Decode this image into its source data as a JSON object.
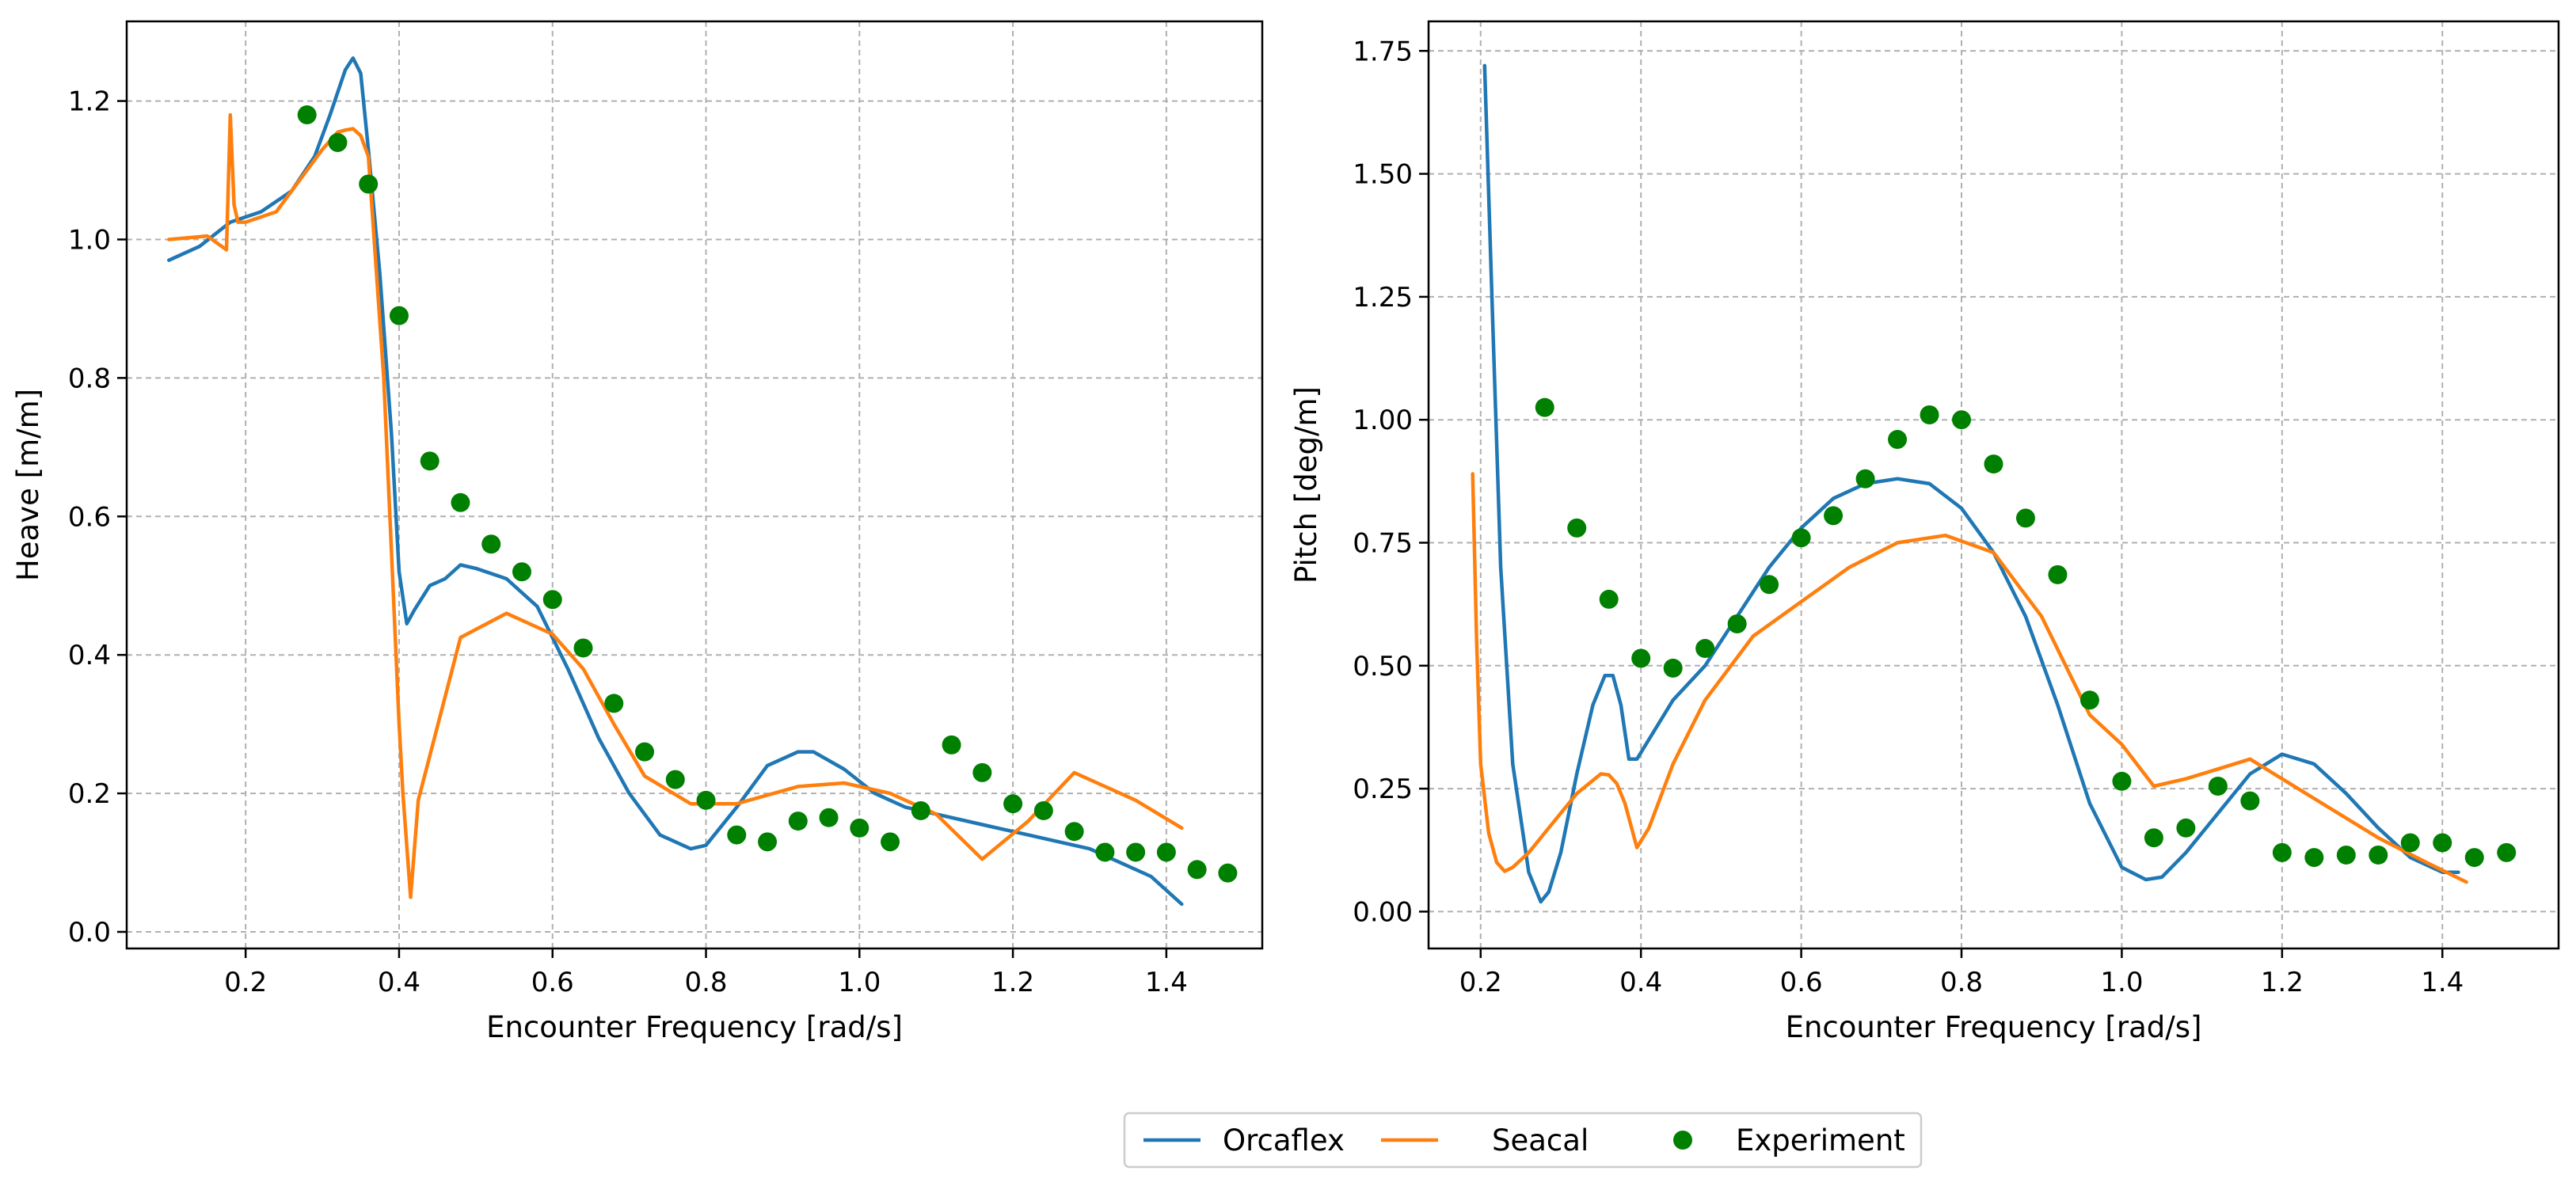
{
  "colors": {
    "orcaflex": "#1f77b4",
    "seacal": "#ff7f0e",
    "experiment": "#008000"
  },
  "legend": {
    "orcaflex_label": "Orcaflex",
    "seacal_label": "Seacal",
    "experiment_label": "Experiment",
    "placement": "bottom-center"
  },
  "chart_data": [
    {
      "type": "line",
      "id": "heave",
      "xlabel": "Encounter Frequency [rad/s]",
      "ylabel": "Heave [m/m]",
      "xlim": [
        0.045,
        1.525
      ],
      "ylim": [
        -0.024,
        1.315
      ],
      "xticks": [
        0.2,
        0.4,
        0.6,
        0.8,
        1.0,
        1.2,
        1.4
      ],
      "xtick_labels": [
        "0.2",
        "0.4",
        "0.6",
        "0.8",
        "1.0",
        "1.2",
        "1.4"
      ],
      "yticks": [
        0.0,
        0.2,
        0.4,
        0.6,
        0.8,
        1.0,
        1.2
      ],
      "ytick_labels": [
        "0.0",
        "0.2",
        "0.4",
        "0.6",
        "0.8",
        "1.0",
        "1.2"
      ],
      "grid": true,
      "series": [
        {
          "name": "Orcaflex",
          "x": [
            0.1,
            0.14,
            0.18,
            0.22,
            0.26,
            0.29,
            0.31,
            0.33,
            0.34,
            0.35,
            0.36,
            0.375,
            0.39,
            0.4,
            0.41,
            0.42,
            0.44,
            0.46,
            0.48,
            0.5,
            0.54,
            0.58,
            0.62,
            0.66,
            0.7,
            0.74,
            0.78,
            0.8,
            0.84,
            0.88,
            0.92,
            0.94,
            0.98,
            1.02,
            1.06,
            1.1,
            1.16,
            1.2,
            1.26,
            1.3,
            1.34,
            1.38,
            1.42
          ],
          "y": [
            0.97,
            0.99,
            1.025,
            1.04,
            1.07,
            1.12,
            1.18,
            1.245,
            1.262,
            1.24,
            1.13,
            0.95,
            0.72,
            0.52,
            0.445,
            0.465,
            0.5,
            0.51,
            0.53,
            0.525,
            0.51,
            0.47,
            0.38,
            0.28,
            0.2,
            0.14,
            0.12,
            0.125,
            0.18,
            0.24,
            0.26,
            0.26,
            0.235,
            0.2,
            0.18,
            0.17,
            0.155,
            0.145,
            0.13,
            0.12,
            0.1,
            0.08,
            0.04
          ]
        },
        {
          "name": "Seacal",
          "x": [
            0.1,
            0.15,
            0.175,
            0.18,
            0.185,
            0.19,
            0.2,
            0.24,
            0.28,
            0.3,
            0.32,
            0.33,
            0.34,
            0.35,
            0.36,
            0.38,
            0.4,
            0.405,
            0.415,
            0.425,
            0.48,
            0.54,
            0.6,
            0.64,
            0.68,
            0.72,
            0.78,
            0.84,
            0.92,
            0.98,
            1.04,
            1.1,
            1.16,
            1.22,
            1.28,
            1.36,
            1.42
          ],
          "y": [
            1.0,
            1.005,
            0.985,
            1.18,
            1.05,
            1.025,
            1.025,
            1.04,
            1.1,
            1.13,
            1.155,
            1.158,
            1.16,
            1.15,
            1.12,
            0.8,
            0.3,
            0.2,
            0.05,
            0.19,
            0.425,
            0.46,
            0.43,
            0.38,
            0.3,
            0.225,
            0.185,
            0.185,
            0.21,
            0.215,
            0.2,
            0.17,
            0.105,
            0.16,
            0.23,
            0.19,
            0.15
          ]
        },
        {
          "name": "Experiment",
          "type": "scatter",
          "x": [
            0.28,
            0.32,
            0.36,
            0.4,
            0.44,
            0.48,
            0.52,
            0.56,
            0.6,
            0.64,
            0.68,
            0.72,
            0.76,
            0.8,
            0.84,
            0.88,
            0.92,
            0.96,
            1.0,
            1.04,
            1.08,
            1.12,
            1.16,
            1.2,
            1.24,
            1.28,
            1.32,
            1.36,
            1.4,
            1.44,
            1.48
          ],
          "y": [
            1.18,
            1.14,
            1.08,
            0.89,
            0.68,
            0.62,
            0.56,
            0.52,
            0.48,
            0.41,
            0.33,
            0.26,
            0.22,
            0.19,
            0.14,
            0.13,
            0.16,
            0.165,
            0.15,
            0.13,
            0.175,
            0.27,
            0.23,
            0.185,
            0.175,
            0.145,
            0.115,
            0.115,
            0.115,
            0.09,
            0.085
          ]
        }
      ]
    },
    {
      "type": "line",
      "id": "pitch",
      "xlabel": "Encounter Frequency [rad/s]",
      "ylabel": "Pitch [deg/m]",
      "xlim": [
        0.135,
        1.545
      ],
      "ylim": [
        -0.075,
        1.81
      ],
      "xticks": [
        0.2,
        0.4,
        0.6,
        0.8,
        1.0,
        1.2,
        1.4
      ],
      "xtick_labels": [
        "0.2",
        "0.4",
        "0.6",
        "0.8",
        "1.0",
        "1.2",
        "1.4"
      ],
      "yticks": [
        0.0,
        0.25,
        0.5,
        0.75,
        1.0,
        1.25,
        1.5,
        1.75
      ],
      "ytick_labels": [
        "0.00",
        "0.25",
        "0.50",
        "0.75",
        "1.00",
        "1.25",
        "1.50",
        "1.75"
      ],
      "grid": true,
      "series": [
        {
          "name": "Orcaflex",
          "x": [
            0.205,
            0.215,
            0.225,
            0.24,
            0.26,
            0.275,
            0.285,
            0.3,
            0.32,
            0.34,
            0.355,
            0.365,
            0.375,
            0.385,
            0.395,
            0.41,
            0.44,
            0.48,
            0.52,
            0.56,
            0.6,
            0.64,
            0.68,
            0.72,
            0.76,
            0.8,
            0.84,
            0.88,
            0.92,
            0.96,
            1.0,
            1.03,
            1.05,
            1.08,
            1.12,
            1.16,
            1.2,
            1.24,
            1.28,
            1.32,
            1.36,
            1.4,
            1.42
          ],
          "y": [
            1.72,
            1.2,
            0.7,
            0.3,
            0.08,
            0.02,
            0.04,
            0.12,
            0.28,
            0.42,
            0.48,
            0.48,
            0.42,
            0.31,
            0.31,
            0.35,
            0.43,
            0.5,
            0.6,
            0.7,
            0.78,
            0.84,
            0.87,
            0.88,
            0.87,
            0.82,
            0.73,
            0.6,
            0.42,
            0.22,
            0.09,
            0.065,
            0.07,
            0.12,
            0.2,
            0.28,
            0.32,
            0.3,
            0.24,
            0.17,
            0.11,
            0.08,
            0.08
          ]
        },
        {
          "name": "Seacal",
          "x": [
            0.19,
            0.195,
            0.2,
            0.21,
            0.22,
            0.23,
            0.24,
            0.26,
            0.28,
            0.32,
            0.35,
            0.36,
            0.37,
            0.38,
            0.395,
            0.41,
            0.44,
            0.48,
            0.54,
            0.6,
            0.66,
            0.72,
            0.78,
            0.84,
            0.9,
            0.96,
            1.0,
            1.04,
            1.08,
            1.12,
            1.16,
            1.2,
            1.26,
            1.32,
            1.38,
            1.43
          ],
          "y": [
            0.89,
            0.55,
            0.3,
            0.16,
            0.1,
            0.082,
            0.09,
            0.12,
            0.16,
            0.24,
            0.28,
            0.278,
            0.26,
            0.22,
            0.13,
            0.17,
            0.3,
            0.43,
            0.56,
            0.63,
            0.7,
            0.75,
            0.765,
            0.73,
            0.6,
            0.4,
            0.34,
            0.255,
            0.27,
            0.29,
            0.31,
            0.27,
            0.21,
            0.15,
            0.1,
            0.06
          ]
        },
        {
          "name": "Experiment",
          "type": "scatter",
          "x": [
            0.28,
            0.32,
            0.36,
            0.4,
            0.44,
            0.48,
            0.52,
            0.56,
            0.6,
            0.64,
            0.68,
            0.72,
            0.76,
            0.8,
            0.84,
            0.88,
            0.92,
            0.96,
            1.0,
            1.04,
            1.08,
            1.12,
            1.16,
            1.2,
            1.24,
            1.28,
            1.32,
            1.36,
            1.4,
            1.44,
            1.48
          ],
          "y": [
            1.025,
            0.78,
            0.635,
            0.515,
            0.495,
            0.535,
            0.585,
            0.665,
            0.76,
            0.805,
            0.88,
            0.96,
            1.01,
            1.0,
            0.91,
            0.8,
            0.685,
            0.43,
            0.265,
            0.15,
            0.17,
            0.255,
            0.225,
            0.12,
            0.11,
            0.115,
            0.115,
            0.14,
            0.14,
            0.11,
            0.12
          ]
        }
      ]
    }
  ]
}
